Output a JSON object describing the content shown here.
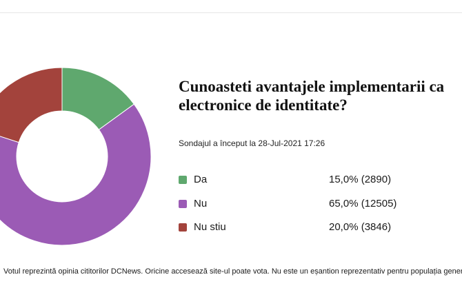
{
  "poll": {
    "title_line1": "Cunoasteti avantajele implementarii ca",
    "title_line2": "electronice de identitate?",
    "started": "Sondajul a început la 28-Jul-2021 17:26",
    "options": [
      {
        "label": "Da",
        "result": "15,0% (2890)",
        "color": "#5fa86e"
      },
      {
        "label": "Nu",
        "result": "65,0% (12505)",
        "color": "#9b5bb5"
      },
      {
        "label": "Nu stiu",
        "result": "20,0% (3846)",
        "color": "#a3433c"
      }
    ],
    "disclaimer": "Votul reprezintă opinia cititorilor DCNews. Oricine accesează site-ul poate vota. Nu este un eșantion reprezentativ pentru populația gener"
  },
  "chart_data": {
    "type": "pie",
    "donut": true,
    "categories": [
      "Da",
      "Nu",
      "Nu stiu"
    ],
    "values": [
      15.0,
      65.0,
      20.0
    ],
    "counts": [
      2890,
      12505,
      3846
    ],
    "colors": [
      "#5fa86e",
      "#9b5bb5",
      "#a3433c"
    ]
  }
}
